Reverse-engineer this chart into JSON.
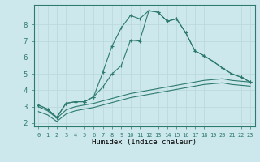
{
  "xlabel": "Humidex (Indice chaleur)",
  "bg_color": "#cde8ec",
  "line_color": "#2d7a6e",
  "grid_color": "#b8d8dc",
  "xlim": [
    -0.5,
    23.5
  ],
  "ylim": [
    1.8,
    9.2
  ],
  "yticks": [
    2,
    3,
    4,
    5,
    6,
    7,
    8
  ],
  "xticks": [
    0,
    1,
    2,
    3,
    4,
    5,
    6,
    7,
    8,
    9,
    10,
    11,
    12,
    13,
    14,
    15,
    16,
    17,
    18,
    19,
    20,
    21,
    22,
    23
  ],
  "line1_x": [
    0,
    1,
    2,
    3,
    4,
    5,
    6,
    7,
    8,
    9,
    10,
    11,
    12,
    13,
    14,
    15,
    16,
    17,
    18,
    19,
    20,
    21,
    22,
    23
  ],
  "line1_y": [
    3.1,
    2.85,
    2.35,
    3.2,
    3.3,
    3.3,
    3.6,
    5.1,
    6.7,
    7.8,
    8.55,
    8.35,
    8.85,
    8.75,
    8.2,
    8.35,
    7.5,
    6.4,
    6.1,
    5.75,
    5.35,
    5.0,
    4.8,
    4.5
  ],
  "line2_x": [
    0,
    1,
    2,
    3,
    4,
    5,
    6,
    7,
    8,
    9,
    10,
    11,
    12,
    13,
    14,
    15,
    16,
    17,
    18,
    19,
    20,
    21,
    22,
    23
  ],
  "line2_y": [
    3.1,
    2.85,
    2.35,
    3.2,
    3.3,
    3.3,
    3.6,
    4.2,
    5.0,
    5.5,
    7.05,
    7.0,
    8.85,
    8.75,
    8.2,
    8.35,
    7.5,
    6.4,
    6.1,
    5.75,
    5.35,
    5.0,
    4.8,
    4.5
  ],
  "line3_x": [
    0,
    1,
    2,
    3,
    4,
    5,
    6,
    7,
    8,
    9,
    10,
    11,
    12,
    13,
    14,
    15,
    16,
    17,
    18,
    19,
    20,
    21,
    22,
    23
  ],
  "line3_y": [
    3.0,
    2.75,
    2.3,
    2.8,
    3.0,
    3.1,
    3.2,
    3.35,
    3.5,
    3.65,
    3.8,
    3.9,
    4.0,
    4.1,
    4.2,
    4.3,
    4.4,
    4.5,
    4.6,
    4.65,
    4.7,
    4.6,
    4.55,
    4.5
  ],
  "line4_x": [
    0,
    1,
    2,
    3,
    4,
    5,
    6,
    7,
    8,
    9,
    10,
    11,
    12,
    13,
    14,
    15,
    16,
    17,
    18,
    19,
    20,
    21,
    22,
    23
  ],
  "line4_y": [
    2.7,
    2.5,
    2.1,
    2.55,
    2.75,
    2.85,
    2.95,
    3.1,
    3.25,
    3.4,
    3.55,
    3.65,
    3.75,
    3.85,
    3.95,
    4.05,
    4.15,
    4.25,
    4.35,
    4.4,
    4.45,
    4.35,
    4.3,
    4.25
  ]
}
